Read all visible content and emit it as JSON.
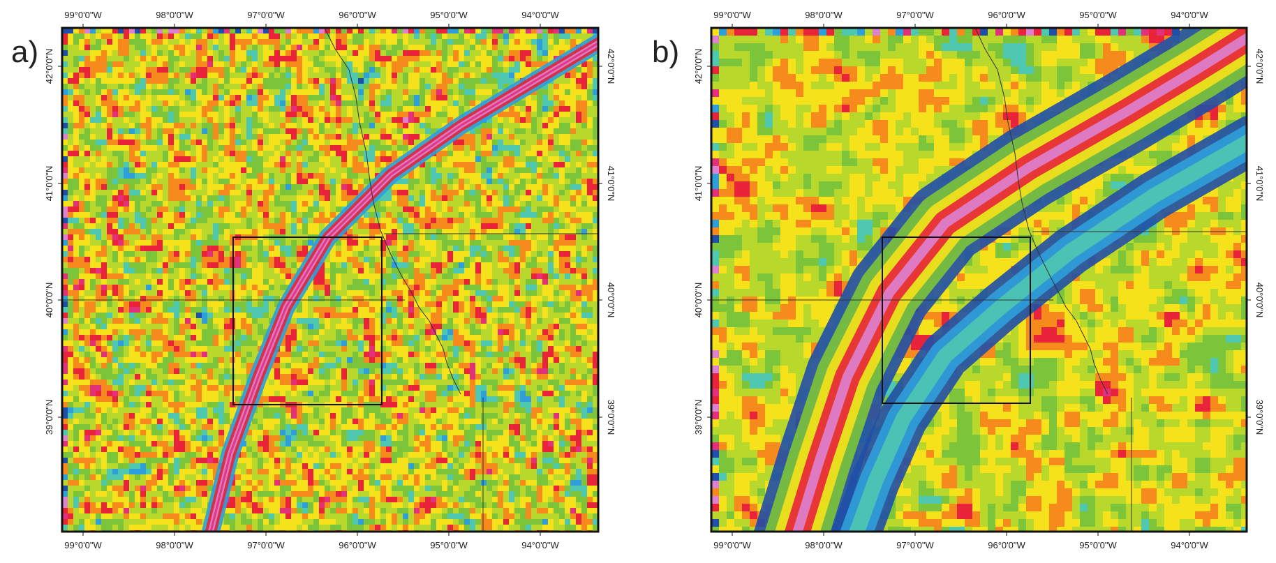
{
  "colors": {
    "ramp": [
      "#1f4fa8",
      "#2f9fdc",
      "#4ec8b0",
      "#7cc43a",
      "#b8d82c",
      "#f6e21a",
      "#f78a1c",
      "#e8233a",
      "#e2307a",
      "#dd82d0"
    ],
    "frame": "#111111",
    "boundary": "#333333"
  },
  "panels": [
    {
      "id": "a",
      "label": "a)",
      "lon_ticks": [
        "99°0'0\"W",
        "98°0'0\"W",
        "97°0'0\"W",
        "96°0'0\"W",
        "95°0'0\"W",
        "94°0'0\"W"
      ],
      "lat_ticks": [
        "42°0'0\"N",
        "41°0'0\"N",
        "40°0'0\"N",
        "39°0'0\"N"
      ]
    },
    {
      "id": "b",
      "label": "b)",
      "lon_ticks": [
        "99°0'0\"W",
        "98°0'0\"W",
        "97°0'0\"W",
        "96°0'0\"W",
        "95°0'0\"W",
        "94°0'0\"W"
      ],
      "lat_ticks": [
        "42°0'0\"N",
        "41°0'0\"N",
        "40°0'0\"N",
        "39°0'0\"N"
      ]
    }
  ]
}
